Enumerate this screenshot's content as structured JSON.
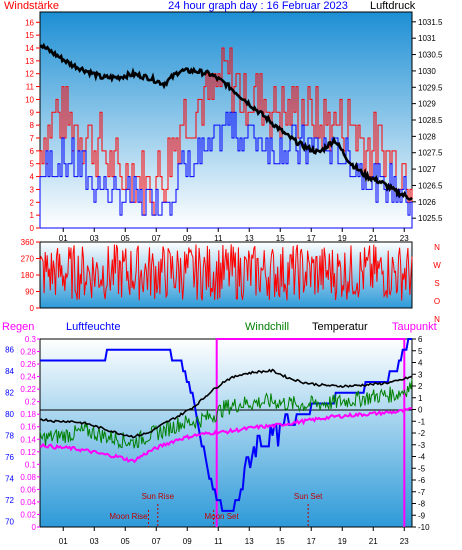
{
  "title": "24 hour graph day : 16 Februar 2023",
  "colors": {
    "wind": "#ff0000",
    "gust": "#0000ff",
    "pressure": "#000000",
    "humidity": "#0000ff",
    "windchill": "#008000",
    "temperature": "#000000",
    "dewpoint": "#ff00ff",
    "rain": "#ff00ff",
    "axis_left": "#ff0000",
    "bg_top": "#ffffff",
    "bg_bottom": "#1a8fd6"
  },
  "chart_data": [
    {
      "type": "line",
      "name": "wind_pressure",
      "left_label": "Windstärke",
      "right_label": "Luftdruck",
      "x_ticks": [
        "01",
        "03",
        "05",
        "07",
        "09",
        "11",
        "13",
        "15",
        "17",
        "19",
        "21",
        "23"
      ],
      "y_left_ticks": [
        "0",
        "1",
        "2",
        "3",
        "4",
        "5",
        "6",
        "7",
        "8",
        "9",
        "10",
        "11",
        "12",
        "13",
        "14",
        "15",
        "16"
      ],
      "y_right_ticks": [
        "1025.5",
        "1026",
        "1026.5",
        "1027",
        "1027.5",
        "1028",
        "1028.5",
        "1029",
        "1029.5",
        "1030",
        "1030.5",
        "1031",
        "1031.5"
      ],
      "ylim_left": [
        0,
        16.8
      ],
      "ylim_right": [
        1025.2,
        1031.8
      ],
      "pressure": {
        "x": [
          0,
          1,
          2,
          3,
          4,
          5,
          6,
          7,
          8,
          9,
          10,
          11,
          12,
          13,
          14,
          15,
          16,
          17,
          18,
          19,
          20,
          21,
          22,
          23,
          24
        ],
        "y": [
          1030.8,
          1030.5,
          1030.2,
          1030.0,
          1029.8,
          1029.8,
          1029.9,
          1029.8,
          1029.6,
          1030.0,
          1030.0,
          1029.9,
          1029.6,
          1029.2,
          1028.8,
          1028.4,
          1028.0,
          1027.7,
          1027.5,
          1027.9,
          1027.2,
          1026.8,
          1026.6,
          1026.3,
          1026.1
        ]
      },
      "wind_avg": {
        "x": [
          0,
          1,
          2,
          3,
          4,
          5,
          6,
          7,
          8,
          9,
          10,
          11,
          12,
          13,
          14,
          15,
          16,
          17,
          18,
          19,
          20,
          21,
          22,
          23,
          24
        ],
        "y": [
          4,
          5,
          5,
          4,
          3,
          2,
          2,
          2,
          2,
          4,
          5,
          6,
          8,
          7,
          7,
          6,
          6,
          6,
          6,
          6,
          5,
          4,
          3,
          3,
          2
        ]
      },
      "gust": {
        "x": [
          0,
          1,
          2,
          3,
          4,
          5,
          6,
          7,
          8,
          9,
          10,
          11,
          12,
          13,
          14,
          15,
          16,
          17,
          18,
          19,
          20,
          21,
          22,
          23,
          24
        ],
        "y": [
          6,
          9,
          8,
          7,
          6,
          4,
          4,
          3,
          4,
          8,
          9,
          10,
          12,
          10,
          10,
          9,
          9,
          9,
          8,
          8,
          8,
          6,
          6,
          5,
          4
        ]
      }
    },
    {
      "type": "scatter",
      "name": "wind_direction",
      "y_ticks": [
        "0",
        "90",
        "180",
        "270",
        "360"
      ],
      "right_labels": [
        "N",
        "W",
        "S",
        "O",
        "N"
      ],
      "ylim": [
        0,
        360
      ]
    },
    {
      "type": "line",
      "name": "weather",
      "labels": {
        "rain": "Regen",
        "humidity": "Luftfeuchte",
        "windchill": "Windchill",
        "temperature": "Temperatur",
        "dewpoint": "Taupunkt"
      },
      "x_ticks": [
        "01",
        "03",
        "05",
        "07",
        "09",
        "11",
        "13",
        "15",
        "17",
        "19",
        "21",
        "23"
      ],
      "y_humidity_ticks": [
        "70",
        "72",
        "74",
        "76",
        "78",
        "80",
        "82",
        "84",
        "86"
      ],
      "y_rain_ticks": [
        "0",
        "0.02",
        "0.04",
        "0.06",
        "0.08",
        "0.1",
        "0.12",
        "0.14",
        "0.16",
        "0.18",
        "0.2",
        "0.22",
        "0.24",
        "0.26",
        "0.28",
        "0.3"
      ],
      "y_temp_ticks": [
        "-10",
        "-9",
        "-8",
        "-7",
        "-6",
        "-5",
        "-4",
        "-3",
        "-2",
        "-1",
        "0",
        "1",
        "2",
        "3",
        "4",
        "5",
        "6"
      ],
      "ylim_temp": [
        -10,
        6
      ],
      "ylim_humidity": [
        69.5,
        87
      ],
      "ylim_rain": [
        0,
        0.3
      ],
      "events": [
        {
          "label": "Moon Rise",
          "hour": 7.0
        },
        {
          "label": "Sun Rise",
          "hour": 7.6
        },
        {
          "label": "Moon Set",
          "hour": 11.2
        },
        {
          "label": "Sun Set",
          "hour": 17.3
        }
      ],
      "rain_segment": {
        "from_hour": 11.4,
        "to_hour": 23.5,
        "value": 0.3
      },
      "temperature": {
        "x": [
          0,
          1,
          2,
          3,
          4,
          5,
          6,
          7,
          8,
          9,
          10,
          11,
          12,
          13,
          14,
          15,
          16,
          17,
          18,
          19,
          20,
          21,
          22,
          23,
          24
        ],
        "y": [
          -0.8,
          -1.0,
          -1.0,
          -1.2,
          -1.6,
          -2.0,
          -2.3,
          -2.0,
          -1.2,
          -0.5,
          0.3,
          1.5,
          2.5,
          3.0,
          3.2,
          3.3,
          2.7,
          2.3,
          2.1,
          2.0,
          2.0,
          2.1,
          2.2,
          2.4,
          2.8
        ]
      },
      "windchill": {
        "x": [
          0,
          1,
          2,
          3,
          4,
          5,
          6,
          7,
          8,
          9,
          10,
          11,
          12,
          13,
          14,
          15,
          16,
          17,
          18,
          19,
          20,
          21,
          22,
          23,
          24
        ],
        "y": [
          -2.5,
          -2.3,
          -2.1,
          -1.8,
          -2.2,
          -2.5,
          -2.8,
          -2.2,
          -1.8,
          -1.2,
          -1.0,
          -0.6,
          0.2,
          0.5,
          0.6,
          0.7,
          0.5,
          0.4,
          0.5,
          0.6,
          0.8,
          1.0,
          1.2,
          1.3,
          2.0
        ]
      },
      "dewpoint": {
        "x": [
          0,
          1,
          2,
          3,
          4,
          5,
          6,
          7,
          8,
          9,
          10,
          11,
          12,
          13,
          14,
          15,
          16,
          17,
          18,
          19,
          20,
          21,
          22,
          23,
          24
        ],
        "y": [
          -3.0,
          -3.2,
          -3.3,
          -3.5,
          -3.8,
          -4.0,
          -4.4,
          -3.6,
          -3.0,
          -2.5,
          -2.2,
          -2.0,
          -1.9,
          -1.7,
          -1.5,
          -1.4,
          -1.2,
          -1.0,
          -0.8,
          -0.6,
          -0.5,
          -0.4,
          -0.3,
          -0.2,
          0.0
        ]
      },
      "humidity": {
        "x": [
          0,
          2,
          4,
          4.5,
          6,
          8,
          9,
          10,
          10.5,
          11,
          11.5,
          12,
          12.5,
          13,
          13.5,
          14,
          15,
          16,
          17,
          18,
          19,
          20,
          21,
          22,
          23,
          23.5,
          24
        ],
        "y": [
          85,
          85,
          85,
          86,
          86,
          86,
          85,
          81,
          77,
          74,
          72,
          71,
          71,
          73,
          76,
          77,
          78,
          79,
          80,
          81,
          81.5,
          82,
          82.5,
          83,
          84,
          86,
          87
        ]
      }
    }
  ]
}
